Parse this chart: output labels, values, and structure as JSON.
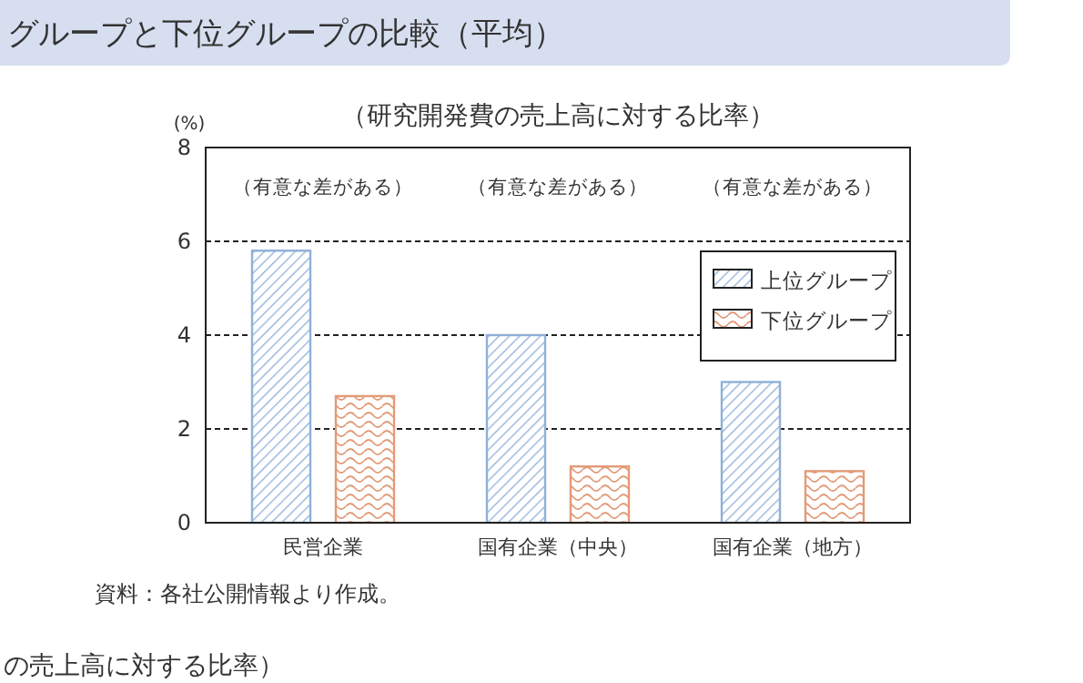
{
  "chart_data": {
    "type": "bar",
    "title": "グループと下位グループの比較（平均）",
    "subtitle": "（研究開発費の売上高に対する比率）",
    "ylabel": "(%)",
    "categories": [
      "民営企業",
      "国有企業（中央）",
      "国有企業（地方）"
    ],
    "series": [
      {
        "name": "上位グループ",
        "color": "#8fb0d8",
        "values": [
          5.8,
          4.0,
          3.0
        ]
      },
      {
        "name": "下位グループ",
        "color": "#e39a78",
        "values": [
          2.7,
          1.2,
          1.1
        ]
      }
    ],
    "ylim": [
      0,
      8
    ],
    "yticks": [
      0,
      2,
      4,
      6,
      8
    ],
    "grid": "y",
    "legend": "top right",
    "annotations": [
      "（有意な差がある）",
      "（有意な差がある）",
      "（有意な差がある）",
      "資料：各社公開情報より作成。",
      "の売上高に対する比率）"
    ]
  }
}
